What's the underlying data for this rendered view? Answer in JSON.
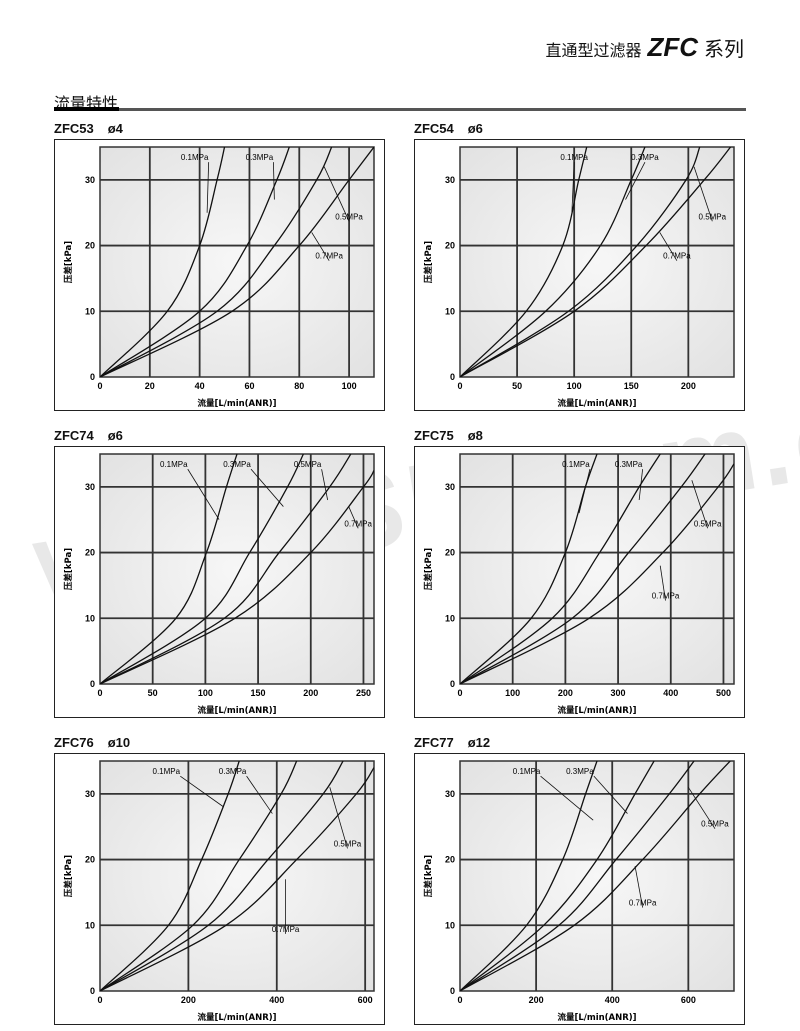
{
  "header": {
    "series_cn": "直通型过滤器",
    "series_code": "ZFC",
    "series_suffix": "系列"
  },
  "section_title": "流量特性",
  "watermark": "www.SR.com.cn",
  "chart_data": [
    {
      "type": "line",
      "title": "ZFC53",
      "port": "ø4",
      "xlabel": "流量[L/min(ANR)]",
      "ylabel": "压差[kPa]",
      "xlim": [
        0,
        110
      ],
      "ylim": [
        0,
        35
      ],
      "xticks": [
        0,
        20,
        40,
        60,
        80,
        100
      ],
      "yticks": [
        0,
        10,
        20,
        30
      ],
      "grid": true,
      "series": [
        {
          "name": "0.1MPa",
          "points": [
            [
              0,
              0
            ],
            [
              27,
              10
            ],
            [
              40,
              20
            ],
            [
              47,
              30
            ],
            [
              50,
              35
            ]
          ]
        },
        {
          "name": "0.3MPa",
          "points": [
            [
              0,
              0
            ],
            [
              40,
              10
            ],
            [
              59,
              20
            ],
            [
              71,
              30
            ],
            [
              76,
              35
            ]
          ]
        },
        {
          "name": "0.5MPa",
          "points": [
            [
              0,
              0
            ],
            [
              47,
              10
            ],
            [
              70,
              20
            ],
            [
              87,
              30
            ],
            [
              93,
              35
            ]
          ]
        },
        {
          "name": "0.7MPa",
          "points": [
            [
              0,
              0
            ],
            [
              53,
              10
            ],
            [
              80,
              20
            ],
            [
              100,
              30
            ],
            [
              110,
              35
            ]
          ]
        }
      ]
    },
    {
      "type": "line",
      "title": "ZFC54",
      "port": "ø6",
      "xlabel": "流量[L/min(ANR)]",
      "ylabel": "压差[kPa]",
      "xlim": [
        0,
        240
      ],
      "ylim": [
        0,
        35
      ],
      "xticks": [
        0,
        50,
        100,
        150,
        200
      ],
      "yticks": [
        0,
        10,
        20,
        30
      ],
      "grid": true,
      "series": [
        {
          "name": "0.1MPa",
          "points": [
            [
              0,
              0
            ],
            [
              58,
              10
            ],
            [
              90,
              20
            ],
            [
              104,
              30
            ],
            [
              111,
              35
            ]
          ]
        },
        {
          "name": "0.3MPa",
          "points": [
            [
              0,
              0
            ],
            [
              75,
              10
            ],
            [
              123,
              20
            ],
            [
              150,
              30
            ],
            [
              162,
              35
            ]
          ]
        },
        {
          "name": "0.5MPa",
          "points": [
            [
              0,
              0
            ],
            [
              95,
              10
            ],
            [
              155,
              20
            ],
            [
              198,
              30
            ],
            [
              210,
              35
            ]
          ]
        },
        {
          "name": "0.7MPa",
          "points": [
            [
              0,
              0
            ],
            [
              100,
              10
            ],
            [
              163,
              20
            ],
            [
              214,
              30
            ],
            [
              237,
              35
            ]
          ]
        }
      ]
    },
    {
      "type": "line",
      "title": "ZFC74",
      "port": "ø6",
      "xlabel": "流量[L/min(ANR)]",
      "ylabel": "压差[kPa]",
      "xlim": [
        0,
        260
      ],
      "ylim": [
        0,
        35
      ],
      "xticks": [
        0,
        50,
        100,
        150,
        200,
        250
      ],
      "yticks": [
        0,
        10,
        20,
        30
      ],
      "grid": true,
      "series": [
        {
          "name": "0.1MPa",
          "points": [
            [
              0,
              0
            ],
            [
              72,
              10
            ],
            [
              101,
              20
            ],
            [
              120,
              30
            ],
            [
              130,
              35
            ]
          ]
        },
        {
          "name": "0.3MPa",
          "points": [
            [
              0,
              0
            ],
            [
              100,
              10
            ],
            [
              142,
              20
            ],
            [
              178,
              30
            ],
            [
              193,
              35
            ]
          ]
        },
        {
          "name": "0.5MPa",
          "points": [
            [
              0,
              0
            ],
            [
              118,
              10
            ],
            [
              170,
              20
            ],
            [
              218,
              30
            ],
            [
              238,
              35
            ]
          ]
        },
        {
          "name": "0.7MPa",
          "points": [
            [
              0,
              0
            ],
            [
              128,
              10
            ],
            [
              200,
              20
            ],
            [
              250,
              30
            ],
            [
              260,
              32.5
            ]
          ]
        }
      ]
    },
    {
      "type": "line",
      "title": "ZFC75",
      "port": "ø8",
      "xlabel": "流量[L/min(ANR)]",
      "ylabel": "压差[kPa]",
      "xlim": [
        0,
        520
      ],
      "ylim": [
        0,
        35
      ],
      "xticks": [
        0,
        100,
        200,
        300,
        400,
        500
      ],
      "yticks": [
        0,
        10,
        20,
        30
      ],
      "grid": true,
      "series": [
        {
          "name": "0.1MPa",
          "points": [
            [
              0,
              0
            ],
            [
              135,
              10
            ],
            [
              200,
              20
            ],
            [
              238,
              30
            ],
            [
              260,
              35
            ]
          ]
        },
        {
          "name": "0.3MPa",
          "points": [
            [
              0,
              0
            ],
            [
              175,
              10
            ],
            [
              265,
              20
            ],
            [
              340,
              30
            ],
            [
              380,
              35
            ]
          ]
        },
        {
          "name": "0.5MPa",
          "points": [
            [
              0,
              0
            ],
            [
              213,
              10
            ],
            [
              320,
              20
            ],
            [
              420,
              30
            ],
            [
              465,
              35
            ]
          ]
        },
        {
          "name": "0.7MPa",
          "points": [
            [
              0,
              0
            ],
            [
              245,
              10
            ],
            [
              385,
              20
            ],
            [
              490,
              30
            ],
            [
              520,
              33.5
            ]
          ]
        }
      ]
    },
    {
      "type": "line",
      "title": "ZFC76",
      "port": "ø10",
      "xlabel": "流量[L/min(ANR)]",
      "ylabel": "压差[kPa]",
      "xlim": [
        0,
        620
      ],
      "ylim": [
        0,
        35
      ],
      "xticks": [
        0,
        200,
        400,
        600
      ],
      "yticks": [
        0,
        10,
        20,
        30
      ],
      "grid": true,
      "series": [
        {
          "name": "0.1MPa",
          "points": [
            [
              0,
              0
            ],
            [
              155,
              10
            ],
            [
              230,
              20
            ],
            [
              290,
              30
            ],
            [
              315,
              35
            ]
          ]
        },
        {
          "name": "0.3MPa",
          "points": [
            [
              0,
              0
            ],
            [
              210,
              10
            ],
            [
              315,
              20
            ],
            [
              410,
              30
            ],
            [
              445,
              35
            ]
          ]
        },
        {
          "name": "0.5MPa",
          "points": [
            [
              0,
              0
            ],
            [
              245,
              10
            ],
            [
              380,
              20
            ],
            [
              505,
              30
            ],
            [
              550,
              35
            ]
          ]
        },
        {
          "name": "0.7MPa",
          "points": [
            [
              0,
              0
            ],
            [
              285,
              10
            ],
            [
              445,
              20
            ],
            [
              580,
              30
            ],
            [
              620,
              34
            ]
          ]
        }
      ]
    },
    {
      "type": "line",
      "title": "ZFC77",
      "port": "ø12",
      "xlabel": "流量[L/min(ANR)]",
      "ylabel": "压差[kPa]",
      "xlim": [
        0,
        720
      ],
      "ylim": [
        0,
        35
      ],
      "xticks": [
        0,
        200,
        400,
        600
      ],
      "yticks": [
        0,
        10,
        20,
        30
      ],
      "grid": true,
      "series": [
        {
          "name": "0.1MPa",
          "points": [
            [
              0,
              0
            ],
            [
              175,
              10
            ],
            [
              270,
              20
            ],
            [
              330,
              30
            ],
            [
              360,
              35
            ]
          ]
        },
        {
          "name": "0.3MPa",
          "points": [
            [
              0,
              0
            ],
            [
              220,
              10
            ],
            [
              360,
              20
            ],
            [
              460,
              30
            ],
            [
              510,
              35
            ]
          ]
        },
        {
          "name": "0.5MPa",
          "points": [
            [
              0,
              0
            ],
            [
              260,
              10
            ],
            [
              410,
              20
            ],
            [
              550,
              30
            ],
            [
              615,
              35
            ]
          ]
        },
        {
          "name": "0.7MPa",
          "points": [
            [
              0,
              0
            ],
            [
              300,
              10
            ],
            [
              480,
              20
            ],
            [
              630,
              30
            ],
            [
              710,
              35
            ]
          ]
        }
      ]
    }
  ]
}
